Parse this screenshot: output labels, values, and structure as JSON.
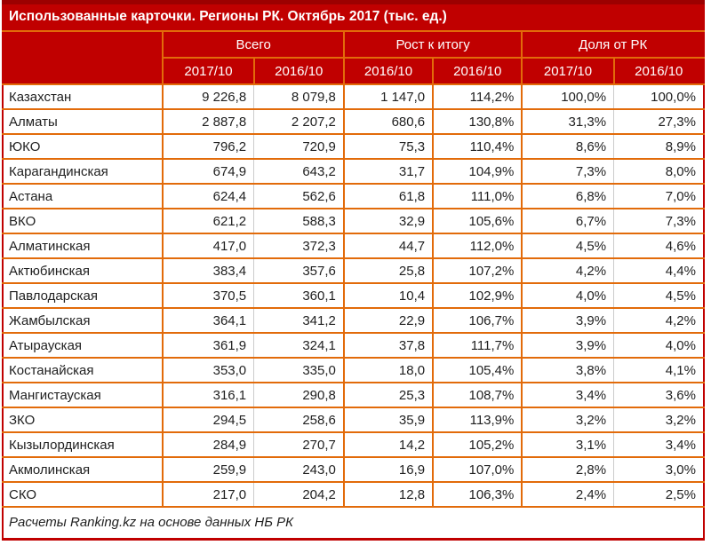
{
  "colors": {
    "header_red": "#C00000",
    "dark_red_top": "#9C0000",
    "grid_orange": "#E26B0A",
    "grid_gray": "#CBCBCB",
    "text_dark": "#1F1F1F",
    "text_white": "#FFFFFF"
  },
  "chart_data": {
    "type": "table",
    "title": "Использованные карточки. Регионы РК. Октябрь 2017 (тыс. ед.)",
    "column_groups": [
      {
        "label": "Всего",
        "sub": [
          "2017/10",
          "2016/10"
        ]
      },
      {
        "label": "Рост к итогу",
        "sub": [
          "2016/10",
          "2016/10"
        ]
      },
      {
        "label": "Доля от РК",
        "sub": [
          "2017/10",
          "2016/10"
        ]
      }
    ],
    "rows": [
      {
        "region": "Казахстан",
        "cells": [
          "9 226,8",
          "8 079,8",
          "1 147,0",
          "114,2%",
          "100,0%",
          "100,0%"
        ]
      },
      {
        "region": "Алматы",
        "cells": [
          "2 887,8",
          "2 207,2",
          "680,6",
          "130,8%",
          "31,3%",
          "27,3%"
        ]
      },
      {
        "region": "ЮКО",
        "cells": [
          "796,2",
          "720,9",
          "75,3",
          "110,4%",
          "8,6%",
          "8,9%"
        ]
      },
      {
        "region": "Карагандинская",
        "cells": [
          "674,9",
          "643,2",
          "31,7",
          "104,9%",
          "7,3%",
          "8,0%"
        ]
      },
      {
        "region": "Астана",
        "cells": [
          "624,4",
          "562,6",
          "61,8",
          "111,0%",
          "6,8%",
          "7,0%"
        ]
      },
      {
        "region": "ВКО",
        "cells": [
          "621,2",
          "588,3",
          "32,9",
          "105,6%",
          "6,7%",
          "7,3%"
        ]
      },
      {
        "region": "Алматинская",
        "cells": [
          "417,0",
          "372,3",
          "44,7",
          "112,0%",
          "4,5%",
          "4,6%"
        ]
      },
      {
        "region": "Актюбинская",
        "cells": [
          "383,4",
          "357,6",
          "25,8",
          "107,2%",
          "4,2%",
          "4,4%"
        ]
      },
      {
        "region": "Павлодарская",
        "cells": [
          "370,5",
          "360,1",
          "10,4",
          "102,9%",
          "4,0%",
          "4,5%"
        ]
      },
      {
        "region": "Жамбылская",
        "cells": [
          "364,1",
          "341,2",
          "22,9",
          "106,7%",
          "3,9%",
          "4,2%"
        ]
      },
      {
        "region": "Атырауская",
        "cells": [
          "361,9",
          "324,1",
          "37,8",
          "111,7%",
          "3,9%",
          "4,0%"
        ]
      },
      {
        "region": "Костанайская",
        "cells": [
          "353,0",
          "335,0",
          "18,0",
          "105,4%",
          "3,8%",
          "4,1%"
        ]
      },
      {
        "region": "Мангистауская",
        "cells": [
          "316,1",
          "290,8",
          "25,3",
          "108,7%",
          "3,4%",
          "3,6%"
        ]
      },
      {
        "region": "ЗКО",
        "cells": [
          "294,5",
          "258,6",
          "35,9",
          "113,9%",
          "3,2%",
          "3,2%"
        ]
      },
      {
        "region": "Кызылординская",
        "cells": [
          "284,9",
          "270,7",
          "14,2",
          "105,2%",
          "3,1%",
          "3,4%"
        ]
      },
      {
        "region": "Акмолинская",
        "cells": [
          "259,9",
          "243,0",
          "16,9",
          "107,0%",
          "2,8%",
          "3,0%"
        ]
      },
      {
        "region": "СКО",
        "cells": [
          "217,0",
          "204,2",
          "12,8",
          "106,3%",
          "2,4%",
          "2,5%"
        ]
      }
    ],
    "footer": "Расчеты Ranking.kz на основе данных НБ РК"
  }
}
